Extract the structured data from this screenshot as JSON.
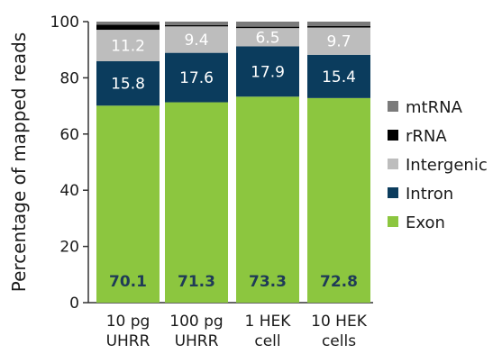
{
  "chart_data": {
    "type": "bar",
    "stacked": true,
    "categories": [
      [
        "10 pg",
        "UHRR"
      ],
      [
        "100 pg",
        "UHRR"
      ],
      [
        "1 HEK",
        "cell"
      ],
      [
        "10 HEK",
        "cells"
      ]
    ],
    "ylabel": "Percentage of mapped reads",
    "ylim": [
      0,
      100
    ],
    "yticks": [
      0,
      20,
      40,
      60,
      80,
      100
    ],
    "legend_position": "right",
    "series": [
      {
        "name": "Exon",
        "color": "#8cc63f",
        "values": [
          70.1,
          71.3,
          73.3,
          72.8
        ],
        "labels": [
          "70.1",
          "71.3",
          "73.3",
          "72.8"
        ],
        "label_style": "bold"
      },
      {
        "name": "Intron",
        "color": "#0b3c5d",
        "values": [
          15.8,
          17.6,
          17.9,
          15.4
        ],
        "labels": [
          "15.8",
          "17.6",
          "17.9",
          "15.4"
        ],
        "label_style": "light"
      },
      {
        "name": "Intergenic",
        "color": "#bdbdbd",
        "values": [
          11.2,
          9.4,
          6.5,
          9.7
        ],
        "labels": [
          "11.2",
          "9.4",
          "6.5",
          "9.7"
        ],
        "label_style": "light"
      },
      {
        "name": "rRNA",
        "color": "#000000",
        "values": [
          1.8,
          0.5,
          0.5,
          0.5
        ],
        "labels": [
          "",
          "",
          "",
          ""
        ]
      },
      {
        "name": "mtRNA",
        "color": "#7a7a7a",
        "values": [
          1.1,
          1.2,
          1.8,
          1.6
        ],
        "labels": [
          "",
          "",
          "",
          ""
        ]
      }
    ],
    "legend_order": [
      "mtRNA",
      "rRNA",
      "Intergenic",
      "Intron",
      "Exon"
    ]
  }
}
